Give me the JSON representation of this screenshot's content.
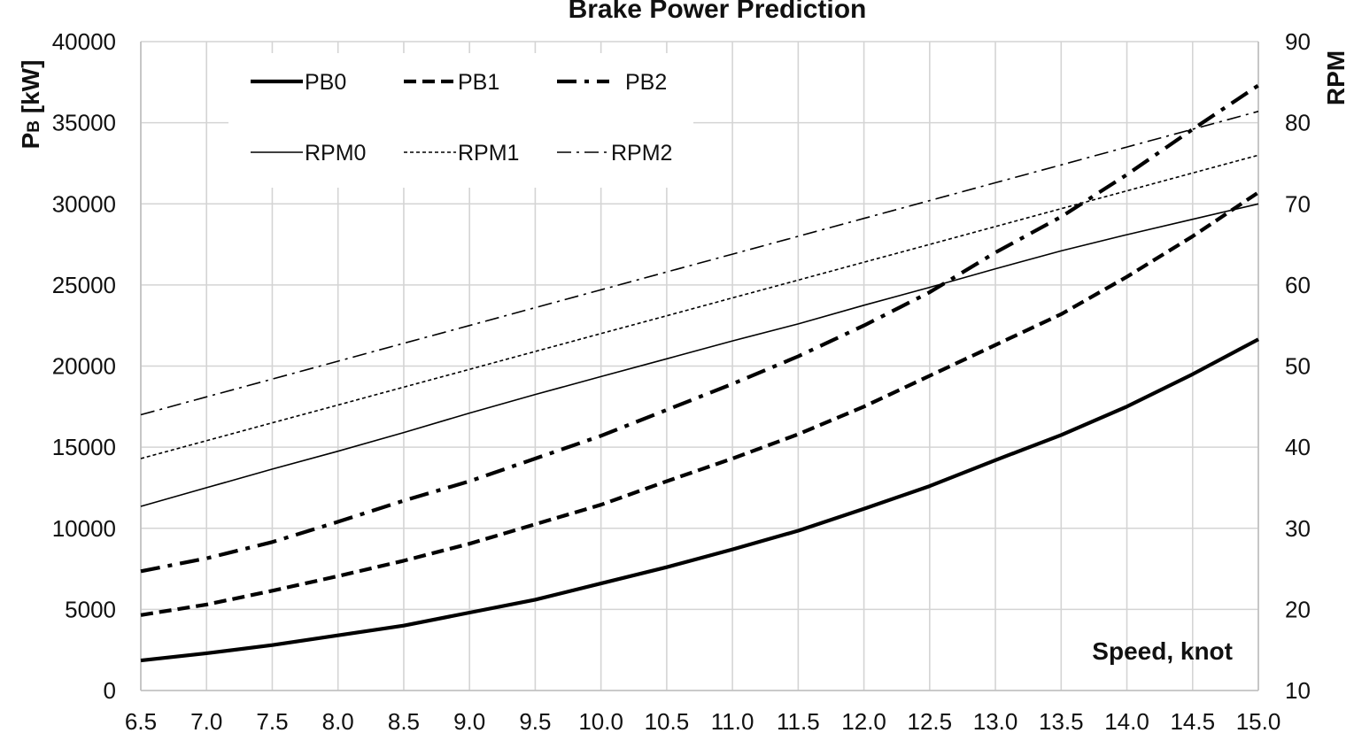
{
  "chart_data": {
    "type": "line",
    "title": "Brake Power Prediction",
    "xlabel": "Speed, knot",
    "ylabel": "P",
    "ylabel_sub": "B",
    "ylabel_unit": " [kW]",
    "y2label": "RPM",
    "x": [
      6.5,
      7.0,
      7.5,
      8.0,
      8.5,
      9.0,
      9.5,
      10.0,
      10.5,
      11.0,
      11.5,
      12.0,
      12.5,
      13.0,
      13.5,
      14.0,
      14.5,
      15.0
    ],
    "x_tick_labels": [
      "6.5",
      "7.0",
      "7.5",
      "8.0",
      "8.5",
      "9.0",
      "9.5",
      "10.0",
      "10.5",
      "11.0",
      "11.5",
      "12.0",
      "12.5",
      "13.0",
      "13.5",
      "14.0",
      "14.5",
      "15.0"
    ],
    "xlim": [
      6.5,
      15.0
    ],
    "ylim": [
      0,
      40000
    ],
    "y_ticks": [
      0,
      5000,
      10000,
      15000,
      20000,
      25000,
      30000,
      35000,
      40000
    ],
    "y2lim": [
      10,
      90
    ],
    "y2_ticks": [
      10,
      20,
      30,
      40,
      50,
      60,
      70,
      80,
      90
    ],
    "grid": true,
    "legend_position": "top-left",
    "series": [
      {
        "name": "PB0",
        "axis": "left",
        "style": "solid-thick",
        "values": [
          1850,
          2300,
          2800,
          3400,
          4000,
          4800,
          5600,
          6600,
          7600,
          8700,
          9850,
          11200,
          12600,
          14200,
          15750,
          17500,
          19500,
          21650
        ]
      },
      {
        "name": "PB1",
        "axis": "left",
        "style": "dash-thick",
        "values": [
          4650,
          5300,
          6150,
          7050,
          8000,
          9050,
          10250,
          11450,
          12900,
          14300,
          15800,
          17500,
          19400,
          21300,
          23200,
          25500,
          28000,
          30700
        ]
      },
      {
        "name": "PB2",
        "axis": "left",
        "style": "dashdot-thick",
        "values": [
          7350,
          8150,
          9150,
          10400,
          11700,
          12900,
          14300,
          15700,
          17300,
          18900,
          20600,
          22500,
          24550,
          27000,
          29200,
          31800,
          34600,
          37300
        ]
      },
      {
        "name": "RPM0",
        "axis": "right",
        "style": "solid-thin",
        "values": [
          32.7,
          35.0,
          37.3,
          39.5,
          41.8,
          44.2,
          46.5,
          48.7,
          50.9,
          53.1,
          55.2,
          57.5,
          59.7,
          62.0,
          64.2,
          66.2,
          68.1,
          70.0
        ]
      },
      {
        "name": "RPM1",
        "axis": "right",
        "style": "dot-thin",
        "values": [
          38.6,
          40.8,
          43.0,
          45.2,
          47.4,
          49.6,
          51.8,
          54.0,
          56.2,
          58.4,
          60.6,
          62.8,
          65.0,
          67.2,
          69.4,
          71.6,
          73.8,
          76.0
        ]
      },
      {
        "name": "RPM2",
        "axis": "right",
        "style": "dashdot-thin",
        "values": [
          44.0,
          46.2,
          48.4,
          50.6,
          52.8,
          55.0,
          57.2,
          59.4,
          61.6,
          63.8,
          66.0,
          68.2,
          70.4,
          72.6,
          74.8,
          77.0,
          79.2,
          81.4
        ]
      }
    ]
  }
}
